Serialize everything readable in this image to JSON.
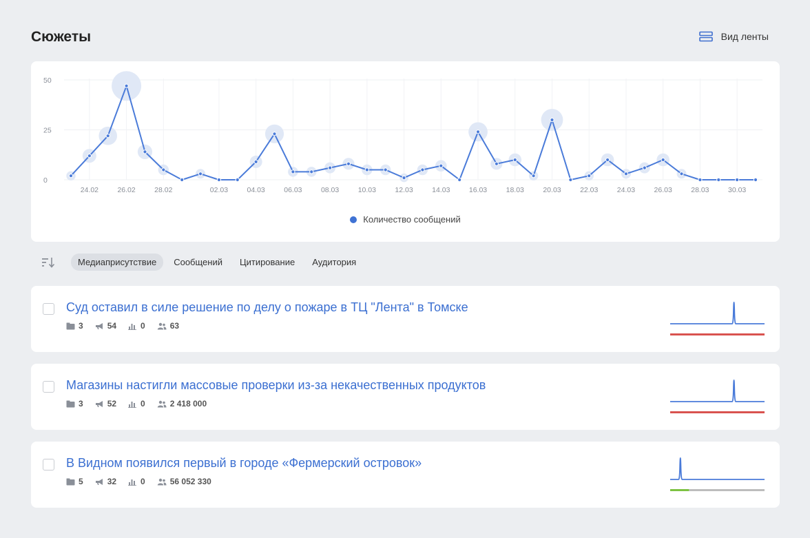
{
  "page": {
    "title": "Сюжеты",
    "feed_view_label": "Вид ленты"
  },
  "colors": {
    "line": "#4a7bd9",
    "bubble": "#dde6f5",
    "accent_red": "#d9534f",
    "accent_green": "#7dc242",
    "neutral_gray": "#bdbdbd"
  },
  "chart_data": {
    "type": "line",
    "ylim": [
      0,
      50
    ],
    "yticks": [
      "0",
      "25",
      "50"
    ],
    "x": [
      "23.02",
      "24.02",
      "25.02",
      "26.02",
      "27.02",
      "28.02",
      "29.02",
      "01.03",
      "02.03",
      "03.03",
      "04.03",
      "05.03",
      "06.03",
      "07.03",
      "08.03",
      "09.03",
      "10.03",
      "11.03",
      "12.03",
      "13.03",
      "14.03",
      "15.03",
      "16.03",
      "17.03",
      "18.03",
      "19.03",
      "20.03",
      "21.03",
      "22.03",
      "23.03",
      "24.03",
      "25.03",
      "26.03",
      "27.03",
      "28.03",
      "29.03",
      "30.03",
      "31.03"
    ],
    "xtick_labels": [
      "24.02",
      "26.02",
      "28.02",
      "02.03",
      "04.03",
      "06.03",
      "08.03",
      "10.03",
      "12.03",
      "14.03",
      "16.03",
      "18.03",
      "20.03",
      "22.03",
      "24.03",
      "26.03",
      "28.03",
      "30.03"
    ],
    "series": [
      {
        "name": "Количество сообщений",
        "values": [
          2,
          12,
          22,
          47,
          14,
          5,
          0,
          3,
          0,
          0,
          9,
          23,
          4,
          4,
          6,
          8,
          5,
          5,
          1,
          5,
          7,
          0,
          24,
          8,
          10,
          2,
          30,
          0,
          2,
          10,
          3,
          6,
          10,
          3,
          0,
          0,
          0,
          0
        ]
      }
    ],
    "grid": true,
    "legend": "bottom-center"
  },
  "sort": {
    "icon": "sort-icon",
    "options": [
      {
        "label": "Медиаприсутствие",
        "active": true
      },
      {
        "label": "Сообщений",
        "active": false
      },
      {
        "label": "Цитирование",
        "active": false
      },
      {
        "label": "Аудитория",
        "active": false
      }
    ]
  },
  "stories": [
    {
      "title": "Суд оставил в силе решение по делу о пожаре в ТЦ \"Лента\" в Томске",
      "stats": {
        "sources": "3",
        "messages": "54",
        "citations": "0",
        "audience": "63"
      },
      "trend": [
        0,
        0,
        0,
        0,
        0,
        0,
        0,
        0,
        0,
        0,
        0,
        0,
        0,
        0,
        0,
        0,
        0,
        0,
        0,
        0,
        0,
        0,
        0,
        0,
        0,
        1,
        0,
        0,
        0,
        0,
        0,
        0,
        0,
        0,
        0,
        0,
        0,
        0
      ],
      "bar": [
        {
          "color": "#d9534f",
          "share": 1.0
        }
      ]
    },
    {
      "title": "Магазины настигли массовые проверки из-за некачественных продуктов",
      "stats": {
        "sources": "3",
        "messages": "52",
        "citations": "0",
        "audience": "2 418 000"
      },
      "trend": [
        0,
        0,
        0,
        0,
        0,
        0,
        0,
        0,
        0,
        0,
        0,
        0,
        0,
        0,
        0,
        0,
        0,
        0,
        0,
        0,
        0,
        0,
        0,
        0,
        0,
        1,
        0,
        0,
        0,
        0,
        0,
        0,
        0,
        0,
        0,
        0,
        0,
        0
      ],
      "bar": [
        {
          "color": "#d9534f",
          "share": 1.0
        }
      ]
    },
    {
      "title": "В Видном появился первый в городе «Фермерский островок»",
      "stats": {
        "sources": "5",
        "messages": "32",
        "citations": "0",
        "audience": "56 052 330"
      },
      "trend": [
        0,
        0,
        0,
        0,
        1,
        0,
        0,
        0,
        0,
        0,
        0,
        0,
        0,
        0,
        0,
        0,
        0,
        0,
        0,
        0,
        0,
        0,
        0,
        0,
        0,
        0,
        0,
        0,
        0,
        0,
        0,
        0,
        0,
        0,
        0,
        0,
        0,
        0
      ],
      "bar": [
        {
          "color": "#7dc242",
          "share": 0.2
        },
        {
          "color": "#bdbdbd",
          "share": 0.8
        }
      ]
    }
  ]
}
